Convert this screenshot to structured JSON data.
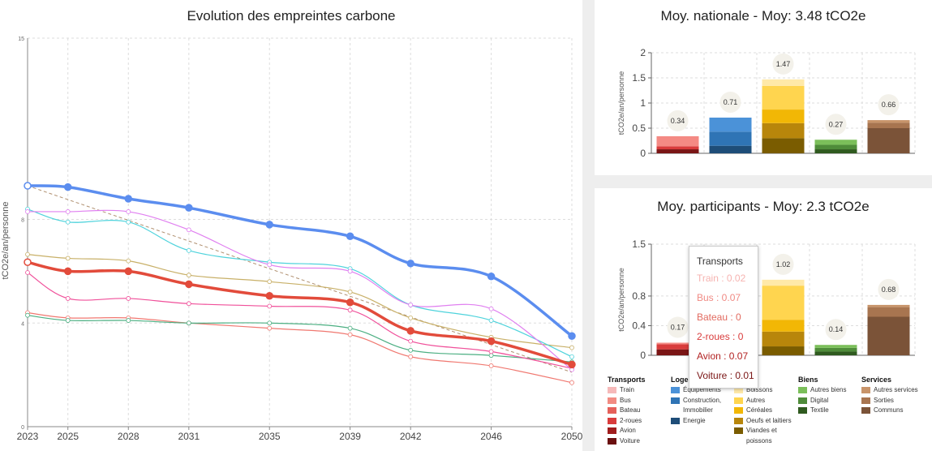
{
  "left_title": "Evolution des empreintes carbone",
  "tr_title": "Moy. nationale - Moy: 3.48 tCO2e",
  "br_title": "Moy. participants - Moy: 2.3 tCO2e",
  "chart_data": [
    {
      "type": "line",
      "title": "Evolution des empreintes carbone",
      "xlabel": "",
      "ylabel": "tCO2e/an/personne",
      "x": [
        2023,
        2025,
        2028,
        2031,
        2035,
        2039,
        2042,
        2046,
        2050
      ],
      "xticks": [
        "2023",
        "2025",
        "2028",
        "2031",
        "2035",
        "2039",
        "2042",
        "2046",
        "2050"
      ],
      "yticks": [
        "0",
        "4",
        "8",
        "15"
      ],
      "ylim": [
        0,
        15
      ],
      "grid": true,
      "series": [
        {
          "color": "#5b8def",
          "width": 3.5,
          "values": [
            9.3,
            9.25,
            8.8,
            8.45,
            7.8,
            7.35,
            6.3,
            5.8,
            3.5
          ]
        },
        {
          "color": "#e24b3b",
          "width": 3.5,
          "values": [
            6.35,
            6.0,
            6.0,
            5.5,
            5.05,
            4.8,
            3.7,
            3.3,
            2.4
          ]
        },
        {
          "color": "#e080f0",
          "width": 1.2,
          "values": [
            8.3,
            8.3,
            8.3,
            7.6,
            6.25,
            6.0,
            4.7,
            4.55,
            2.2
          ]
        },
        {
          "color": "#4fd3dc",
          "width": 1.2,
          "values": [
            8.4,
            7.9,
            7.9,
            6.8,
            6.35,
            6.1,
            4.7,
            4.1,
            2.7
          ]
        },
        {
          "color": "#c8b068",
          "width": 1.2,
          "values": [
            6.65,
            6.5,
            6.4,
            5.85,
            5.6,
            5.2,
            4.2,
            3.45,
            3.05
          ]
        },
        {
          "color": "#f0509a",
          "width": 1.2,
          "values": [
            5.95,
            4.95,
            4.95,
            4.75,
            4.65,
            4.5,
            3.3,
            2.9,
            2.25
          ]
        },
        {
          "color": "#4caf82",
          "width": 1.2,
          "values": [
            4.3,
            4.1,
            4.1,
            4.0,
            4.0,
            3.8,
            2.95,
            2.75,
            2.5
          ]
        },
        {
          "color": "#f07870",
          "width": 1.2,
          "values": [
            4.4,
            4.2,
            4.2,
            4.0,
            3.8,
            3.55,
            2.7,
            2.35,
            1.7
          ]
        }
      ],
      "trend": {
        "color": "#b09070",
        "from": [
          2023,
          9.3
        ],
        "to": [
          2050,
          2.1
        ]
      }
    },
    {
      "type": "bar",
      "title": "Moy. nationale - Moy: 3.48 tCO2e",
      "ylabel": "tCO2e/an/personne",
      "yticks": [
        "0",
        "0.5",
        "1",
        "1.5",
        "2"
      ],
      "ylim": [
        0,
        2
      ],
      "grid": true,
      "categories": [
        "Transports",
        "Logement",
        "Alimentation",
        "Biens",
        "Services"
      ],
      "totals": [
        "0.34",
        "0.71",
        "1.47",
        "0.27",
        "0.66"
      ],
      "stacks": [
        [
          {
            "value": 0.08,
            "color": "#7a1515"
          },
          {
            "value": 0.06,
            "color": "#d93c3c"
          },
          {
            "value": 0.2,
            "color": "#f48a84"
          }
        ],
        [
          {
            "value": 0.15,
            "color": "#1e4d78"
          },
          {
            "value": 0.28,
            "color": "#2f74b5"
          },
          {
            "value": 0.28,
            "color": "#4b92d8"
          }
        ],
        [
          {
            "value": 0.3,
            "color": "#7a5c00"
          },
          {
            "value": 0.3,
            "color": "#b8860b"
          },
          {
            "value": 0.27,
            "color": "#f2b705"
          },
          {
            "value": 0.47,
            "color": "#ffd54f"
          },
          {
            "value": 0.13,
            "color": "#ffe9a8"
          }
        ],
        [
          {
            "value": 0.08,
            "color": "#2f5a1f"
          },
          {
            "value": 0.09,
            "color": "#4f8c3a"
          },
          {
            "value": 0.1,
            "color": "#7bbf5a"
          }
        ],
        [
          {
            "value": 0.5,
            "color": "#7b5338"
          },
          {
            "value": 0.11,
            "color": "#a87550"
          },
          {
            "value": 0.05,
            "color": "#c8946a"
          }
        ]
      ]
    },
    {
      "type": "bar",
      "title": "Moy. participants - Moy: 2.3 tCO2e",
      "ylabel": "tCO2e/an/personne",
      "yticks": [
        "0",
        "0.4",
        "0.8",
        "1.5"
      ],
      "ylim": [
        0,
        1.5
      ],
      "grid": true,
      "categories": [
        "Transports",
        "Logement",
        "Alimentation",
        "Biens",
        "Services"
      ],
      "totals": [
        "0.17",
        "",
        "1.02",
        "0.14",
        "0.68"
      ],
      "stacks": [
        [
          {
            "value": 0.08,
            "color": "#7a1515"
          },
          {
            "value": 0.07,
            "color": "#d93c3c"
          },
          {
            "value": 0.02,
            "color": "#f48a84"
          }
        ],
        [],
        [
          {
            "value": 0.12,
            "color": "#7a5c00"
          },
          {
            "value": 0.2,
            "color": "#b8860b"
          },
          {
            "value": 0.16,
            "color": "#f2b705"
          },
          {
            "value": 0.46,
            "color": "#ffd54f"
          },
          {
            "value": 0.08,
            "color": "#ffe9a8"
          }
        ],
        [
          {
            "value": 0.05,
            "color": "#2f5a1f"
          },
          {
            "value": 0.05,
            "color": "#4f8c3a"
          },
          {
            "value": 0.04,
            "color": "#7bbf5a"
          }
        ],
        [
          {
            "value": 0.52,
            "color": "#7b5338"
          },
          {
            "value": 0.13,
            "color": "#a87550"
          },
          {
            "value": 0.03,
            "color": "#c8946a"
          }
        ]
      ]
    }
  ],
  "tooltip": {
    "title": "Transports",
    "rows": [
      {
        "text": "Train : 0.02",
        "color": "#f6b3b0"
      },
      {
        "text": "Bus : 0.07",
        "color": "#f08a84"
      },
      {
        "text": "Bateau : 0",
        "color": "#e26a5f"
      },
      {
        "text": "2-roues : 0",
        "color": "#d93c3c"
      },
      {
        "text": "Avion : 0.07",
        "color": "#b22222"
      },
      {
        "text": "Voiture : 0.01",
        "color": "#7a1515"
      }
    ]
  },
  "legend": [
    {
      "title": "Transports",
      "items": [
        {
          "label": "Train",
          "color": "#f6b9b9"
        },
        {
          "label": "Bus",
          "color": "#f28b82"
        },
        {
          "label": "Bateau",
          "color": "#e5605a"
        },
        {
          "label": "2-roues",
          "color": "#d93c3c"
        },
        {
          "label": "Avion",
          "color": "#a01d1d"
        },
        {
          "label": "Voiture",
          "color": "#6b1010"
        }
      ]
    },
    {
      "title": "Loge",
      "items": [
        {
          "label": "Équipements",
          "color": "#4b92d8"
        },
        {
          "label": "Construction, Immobilier",
          "color": "#2f74b5"
        },
        {
          "label": "Energie",
          "color": "#1e4d78"
        }
      ]
    },
    {
      "title": "ntation",
      "items": [
        {
          "label": "Boissons",
          "color": "#ffe9a8"
        },
        {
          "label": "Autres",
          "color": "#ffd54f"
        },
        {
          "label": "Céréales",
          "color": "#f2b705"
        },
        {
          "label": "Oeufs et laitiers",
          "color": "#b8860b"
        },
        {
          "label": "Viandes et poissons",
          "color": "#7a5c00"
        }
      ]
    },
    {
      "title": "Biens",
      "items": [
        {
          "label": "Autres biens",
          "color": "#7bbf5a"
        },
        {
          "label": "Digital",
          "color": "#4f8c3a"
        },
        {
          "label": "Textile",
          "color": "#2f5a1f"
        }
      ]
    },
    {
      "title": "Services",
      "items": [
        {
          "label": "Autres services",
          "color": "#c8946a"
        },
        {
          "label": "Sorties",
          "color": "#a87550"
        },
        {
          "label": "Communs",
          "color": "#7b5338"
        }
      ]
    }
  ]
}
